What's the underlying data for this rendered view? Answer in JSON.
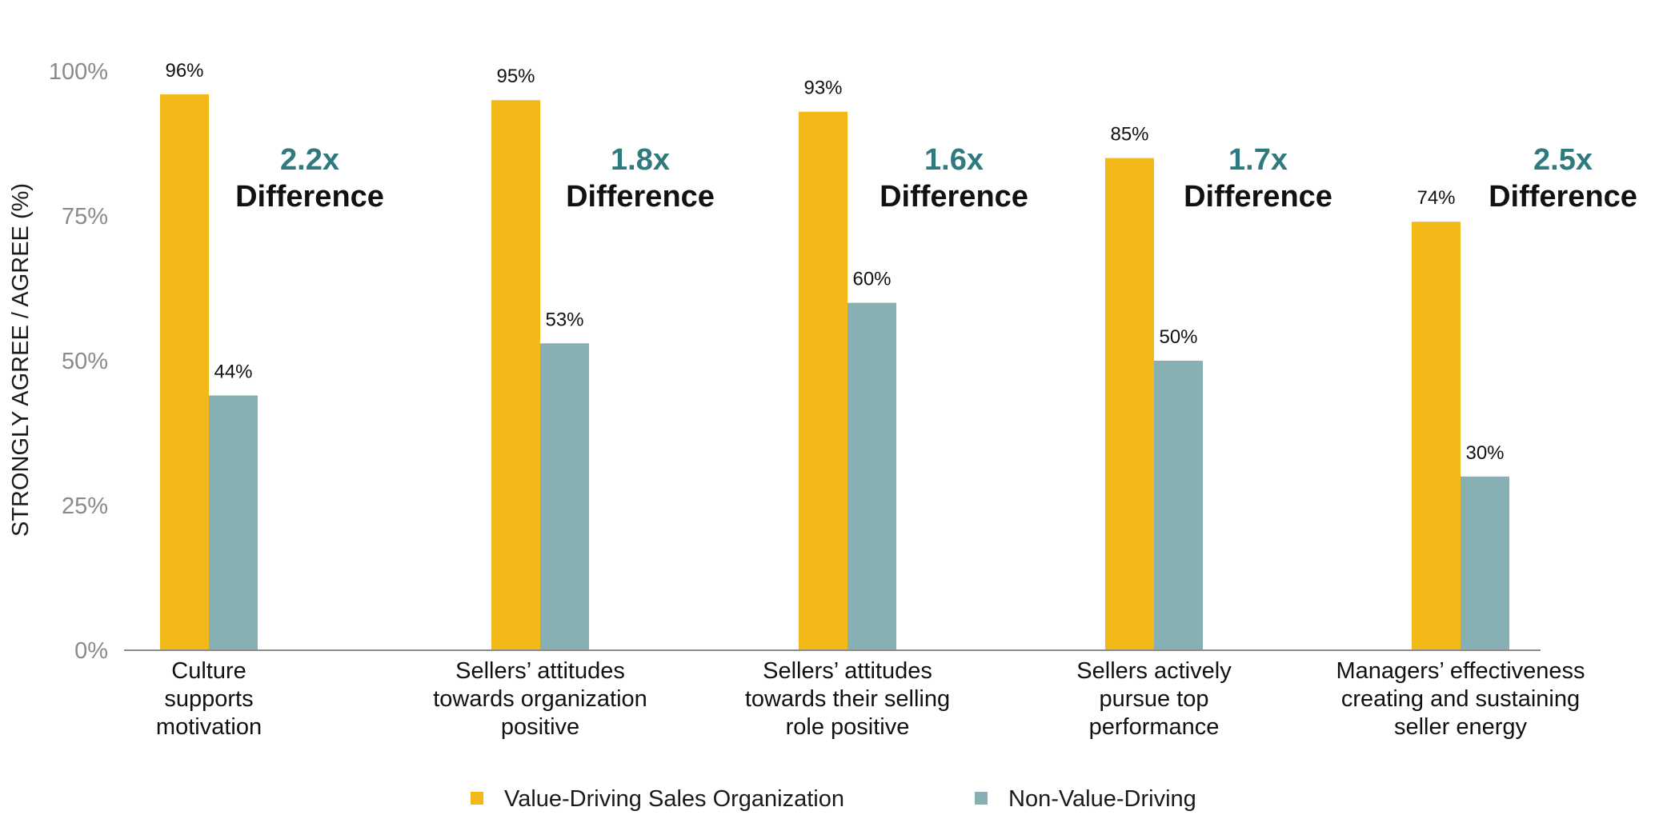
{
  "chart_data": {
    "type": "bar",
    "ylabel": "STRONGLY AGREE / AGREE (%)",
    "xlabel": "",
    "ylim": [
      0,
      100
    ],
    "yticks": [
      0,
      25,
      50,
      75,
      100
    ],
    "ytick_labels": [
      "0%",
      "25%",
      "50%",
      "75%",
      "100%"
    ],
    "grid": false,
    "legend_position": "bottom-center",
    "categories": [
      [
        "Culture",
        "supports",
        "motivation"
      ],
      [
        "Sellers’ attitudes",
        "towards organization",
        "positive"
      ],
      [
        "Sellers’ attitudes",
        "towards their selling",
        "role positive"
      ],
      [
        "Sellers actively",
        "pursue top",
        "performance"
      ],
      [
        "Managers’ effectiveness",
        "creating and sustaining",
        "seller energy"
      ]
    ],
    "series": [
      {
        "name": "Value-Driving Sales Organization",
        "color": "#F2B918",
        "values": [
          96,
          95,
          93,
          85,
          74
        ],
        "labels": [
          "96%",
          "95%",
          "93%",
          "85%",
          "74%"
        ]
      },
      {
        "name": "Non-Value-Driving",
        "color": "#86B0B4",
        "values": [
          44,
          53,
          60,
          50,
          30
        ],
        "labels": [
          "44%",
          "53%",
          "60%",
          "50%",
          "30%"
        ]
      }
    ],
    "annotations": [
      {
        "ratio": "2.2x",
        "text": "Difference"
      },
      {
        "ratio": "1.8x",
        "text": "Difference"
      },
      {
        "ratio": "1.6x",
        "text": "Difference"
      },
      {
        "ratio": "1.7x",
        "text": "Difference"
      },
      {
        "ratio": "2.5x",
        "text": "Difference"
      }
    ],
    "annotation_color": "#2E7A7D",
    "axis_color": "#8a8a8a"
  }
}
